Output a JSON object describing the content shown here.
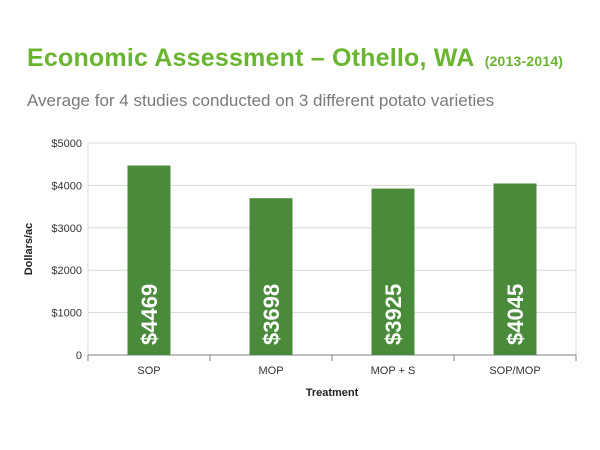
{
  "title": "Economic Assessment – Othello, WA",
  "title_years": "(2013-2014)",
  "subtitle": "Average for 4 studies conducted on 3 different potato varieties",
  "colors": {
    "title": "#6ab52f",
    "bar": "#4a8b3b",
    "axis": "#7f7f7f",
    "grid": "#d9d9d9"
  },
  "chart_data": {
    "type": "bar",
    "categories": [
      "SOP",
      "MOP",
      "MOP + S",
      "SOP/MOP"
    ],
    "values": [
      4469,
      3698,
      3925,
      4045
    ],
    "value_labels": [
      "$4469",
      "$3698",
      "$3925",
      "$4045"
    ],
    "xlabel": "Treatment",
    "ylabel": "Dollars/ac",
    "ylim": [
      0,
      5000
    ],
    "yticks": [
      0,
      1000,
      2000,
      3000,
      4000,
      5000
    ],
    "ytick_labels": [
      "0",
      "$1000",
      "$2000",
      "$3000",
      "$4000",
      "$5000"
    ],
    "grid": true,
    "legend": "none"
  }
}
